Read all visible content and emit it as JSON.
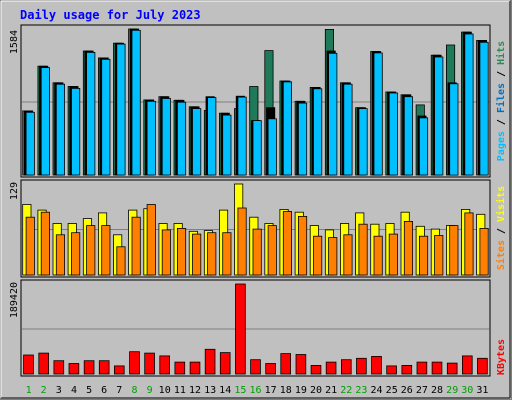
{
  "chart_data": [
    {
      "type": "bar",
      "title": "Daily usage for July 2023",
      "ylabel_parts": [
        {
          "text": "Pages",
          "color": "#00c0ff"
        },
        {
          "text": " / ",
          "color": "#000000"
        },
        {
          "text": "Files",
          "color": "#0070c0"
        },
        {
          "text": " / ",
          "color": "#000000"
        },
        {
          "text": "Hits",
          "color": "#2e8b57"
        }
      ],
      "ymax_label": "1584",
      "ylim": [
        0,
        1584
      ],
      "categories": [
        "1",
        "2",
        "3",
        "4",
        "5",
        "6",
        "7",
        "8",
        "9",
        "10",
        "11",
        "12",
        "13",
        "14",
        "15",
        "16",
        "17",
        "18",
        "19",
        "20",
        "21",
        "22",
        "23",
        "24",
        "25",
        "26",
        "27",
        "28",
        "29",
        "30",
        "31"
      ],
      "series": [
        {
          "name": "Hits",
          "color": "#1f7a5a",
          "values": [
            695,
            1180,
            1000,
            960,
            1345,
            1270,
            1430,
            1584,
            815,
            850,
            810,
            740,
            700,
            670,
            720,
            960,
            1350,
            1020,
            800,
            950,
            1580,
            1000,
            730,
            1340,
            900,
            870,
            760,
            1300,
            1410,
            1550,
            1460
          ]
        },
        {
          "name": "Files",
          "color": "#000000",
          "values": [
            695,
            1180,
            1000,
            960,
            1345,
            1270,
            1430,
            1584,
            815,
            850,
            810,
            740,
            850,
            670,
            855,
            590,
            730,
            1020,
            800,
            950,
            1345,
            1000,
            730,
            1340,
            900,
            870,
            640,
            1300,
            1000,
            1550,
            1460
          ]
        },
        {
          "name": "Pages",
          "color": "#00c0ff",
          "values": [
            680,
            1165,
            985,
            940,
            1330,
            1255,
            1420,
            1570,
            800,
            830,
            790,
            720,
            840,
            650,
            845,
            590,
            610,
            1010,
            780,
            935,
            1320,
            985,
            720,
            1325,
            890,
            850,
            620,
            1280,
            990,
            1530,
            1440
          ]
        }
      ]
    },
    {
      "type": "bar",
      "ylabel_parts": [
        {
          "text": "Sites",
          "color": "#ff8000"
        },
        {
          "text": " / ",
          "color": "#000000"
        },
        {
          "text": "Visits",
          "color": "#ffff00"
        }
      ],
      "ymax_label": "129",
      "ylim": [
        0,
        129
      ],
      "categories": [
        "1",
        "2",
        "3",
        "4",
        "5",
        "6",
        "7",
        "8",
        "9",
        "10",
        "11",
        "12",
        "13",
        "14",
        "15",
        "16",
        "17",
        "18",
        "19",
        "20",
        "21",
        "22",
        "23",
        "24",
        "25",
        "26",
        "27",
        "28",
        "29",
        "30",
        "31"
      ],
      "series": [
        {
          "name": "Visits",
          "color": "#ffff00",
          "values": [
            100,
            92,
            73,
            73,
            80,
            88,
            57,
            92,
            94,
            73,
            73,
            62,
            63,
            92,
            129,
            82,
            73,
            93,
            89,
            70,
            64,
            73,
            88,
            72,
            73,
            89,
            69,
            65,
            70,
            93,
            86
          ]
        },
        {
          "name": "Sites",
          "color": "#ff8000",
          "values": [
            82,
            89,
            57,
            60,
            70,
            70,
            40,
            82,
            100,
            64,
            66,
            58,
            60,
            60,
            95,
            65,
            70,
            90,
            83,
            55,
            53,
            57,
            72,
            55,
            58,
            76,
            55,
            56,
            70,
            88,
            66
          ]
        }
      ]
    },
    {
      "type": "bar",
      "ylabel_parts": [
        {
          "text": "KBytes",
          "color": "#ff0000"
        }
      ],
      "ymax_label": "189420",
      "ylim": [
        0,
        189420
      ],
      "categories": [
        "1",
        "2",
        "3",
        "4",
        "5",
        "6",
        "7",
        "8",
        "9",
        "10",
        "11",
        "12",
        "13",
        "14",
        "15",
        "16",
        "17",
        "18",
        "19",
        "20",
        "21",
        "22",
        "23",
        "24",
        "25",
        "26",
        "27",
        "28",
        "29",
        "30",
        "31"
      ],
      "series": [
        {
          "name": "KBytes",
          "color": "#ff0000",
          "values": [
            40000,
            44000,
            28000,
            22000,
            28000,
            28000,
            17000,
            47000,
            44000,
            38000,
            25000,
            25000,
            52000,
            45000,
            189420,
            30000,
            22000,
            43000,
            41000,
            18000,
            25000,
            30000,
            33000,
            37000,
            17000,
            18000,
            25000,
            25000,
            23000,
            38000,
            33000
          ]
        }
      ]
    }
  ],
  "weekend_days": [
    "1",
    "2",
    "8",
    "9",
    "15",
    "16",
    "22",
    "23",
    "29",
    "30"
  ],
  "colors": {
    "background": "#c0c0c0",
    "plot": "#c0c0c0",
    "title": "#0000ff",
    "weekend_label": "#00a000",
    "weekday_label": "#000000",
    "gridline": "#808080"
  }
}
